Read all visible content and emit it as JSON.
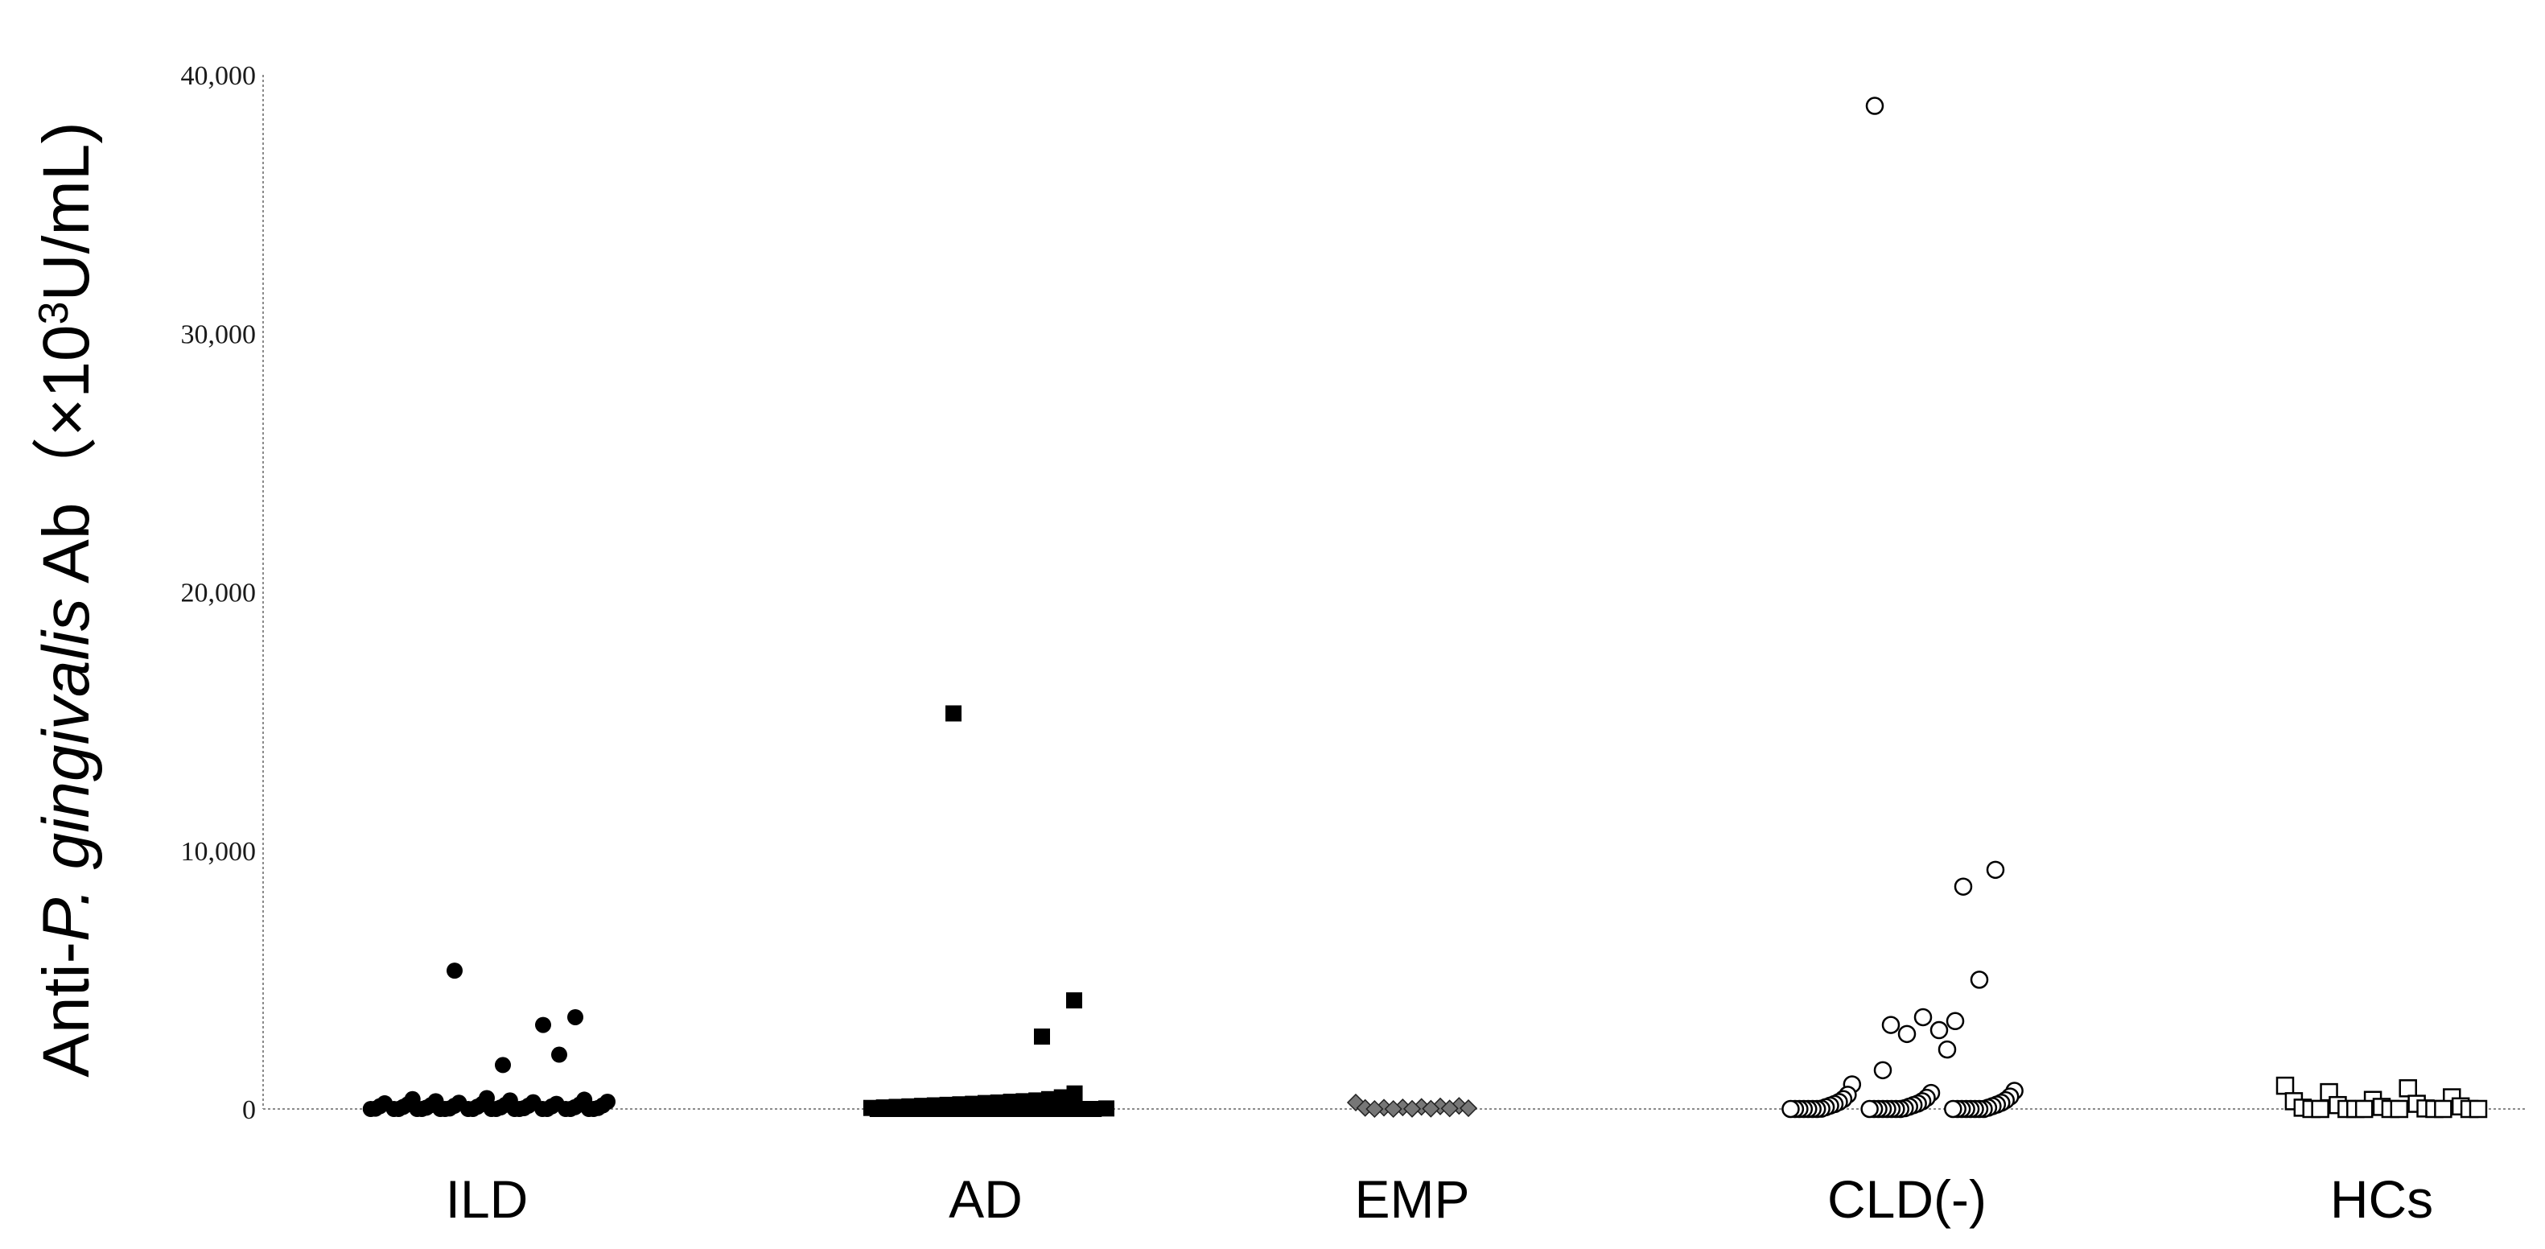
{
  "chart_data": {
    "type": "scatter",
    "title": "",
    "xlabel": "",
    "ylabel_parts": {
      "prefix": "Anti-",
      "italic": "P. gingivalis",
      "middle": " Ab（×10",
      "superscript": "3",
      "suffix": "U/mL)"
    },
    "ylim": [
      0,
      40000
    ],
    "yticks": [
      {
        "value": 0,
        "label": "0"
      },
      {
        "value": 10000,
        "label": "10,000"
      },
      {
        "value": 20000,
        "label": "20,000"
      },
      {
        "value": 30000,
        "label": "30,000"
      },
      {
        "value": 40000,
        "label": "40,000"
      }
    ],
    "categories": [
      "ILD",
      "AD",
      "EMP",
      "CLD(-)",
      "HCs"
    ],
    "grid": false,
    "groups": [
      {
        "name": "ILD",
        "marker": "filled-circle",
        "values": [
          5350,
          3550,
          3250,
          2100,
          1700,
          420,
          380,
          360,
          330,
          300,
          280,
          260,
          240,
          220,
          200,
          190,
          180,
          170,
          160,
          150,
          140,
          130,
          120,
          110,
          100,
          90,
          80,
          70,
          60,
          50,
          40,
          30,
          20,
          10,
          0,
          0,
          0,
          0,
          0,
          0,
          0,
          0,
          0,
          0,
          0,
          0,
          0,
          0,
          0,
          0,
          0,
          0,
          0
        ]
      },
      {
        "name": "AD",
        "marker": "filled-square",
        "values": [
          15300,
          4200,
          2800,
          600,
          450,
          380,
          330,
          300,
          280,
          250,
          230,
          200,
          180,
          160,
          140,
          120,
          100,
          80,
          60,
          40,
          20,
          0,
          0,
          0,
          0,
          0,
          0,
          0,
          0,
          0,
          0,
          0,
          0,
          0,
          0,
          0,
          0,
          0,
          0
        ]
      },
      {
        "name": "EMP",
        "marker": "grey-diamond",
        "values": [
          250,
          120,
          100,
          80,
          60,
          50,
          40,
          30,
          20,
          10,
          5,
          0,
          0
        ]
      },
      {
        "name": "CLD(-)",
        "marker": "open-circle",
        "values": [
          38800,
          9250,
          8600,
          5000,
          3550,
          3400,
          3250,
          3050,
          2900,
          2300,
          1500,
          950,
          700,
          620,
          550,
          480,
          430,
          380,
          340,
          300,
          270,
          240,
          210,
          190,
          170,
          150,
          130,
          110,
          90,
          70,
          50,
          30,
          10,
          0,
          0,
          0,
          0,
          0,
          0,
          0,
          0,
          0,
          0,
          0,
          0,
          0,
          0,
          0,
          0,
          0,
          0,
          0,
          0,
          0,
          0,
          0
        ]
      },
      {
        "name": "HCs",
        "marker": "open-square",
        "values": [
          900,
          800,
          650,
          450,
          350,
          300,
          200,
          150,
          100,
          80,
          50,
          20,
          0,
          0,
          0,
          0,
          0,
          0,
          0,
          0,
          0,
          0,
          0
        ]
      }
    ]
  }
}
